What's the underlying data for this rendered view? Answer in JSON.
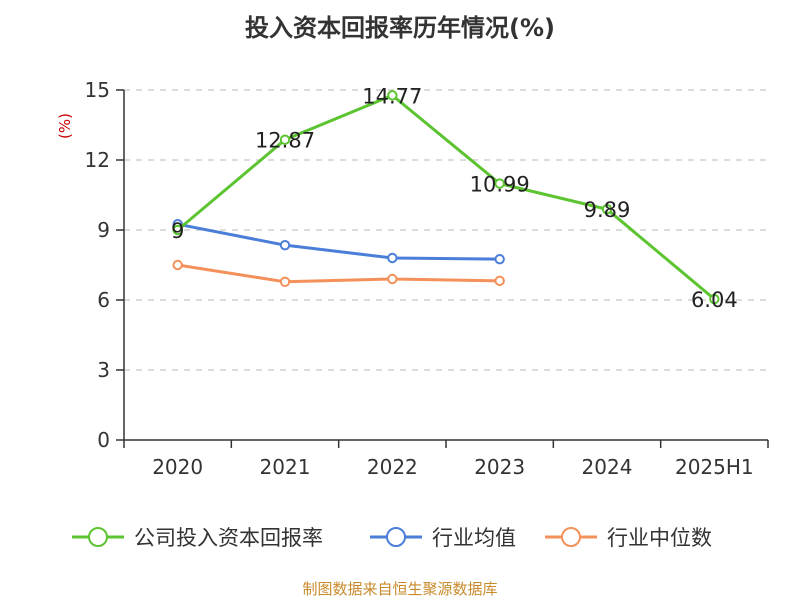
{
  "title": "投入资本回报率历年情况(%)",
  "footer": "制图数据来自恒生聚源数据库",
  "chart_data": {
    "type": "line",
    "title": "投入资本回报率历年情况(%)",
    "ylabel": "(%)",
    "xlabel": "",
    "categories": [
      "2020",
      "2021",
      "2022",
      "2023",
      "2024",
      "2025H1"
    ],
    "ylim": [
      0,
      15
    ],
    "yticks": [
      0,
      3,
      6,
      9,
      12,
      15
    ],
    "grid": true,
    "legend_position": "bottom",
    "series": [
      {
        "name": "公司投入资本回报率",
        "color": "#5cc430",
        "values": [
          9,
          12.87,
          14.77,
          10.99,
          9.89,
          6.04
        ],
        "labels": [
          "9",
          "12.87",
          "14.77",
          "10.99",
          "9.89",
          "6.04"
        ]
      },
      {
        "name": "行业均值",
        "color": "#4a7ed8",
        "values": [
          9.25,
          8.35,
          7.8,
          7.75,
          null,
          null
        ]
      },
      {
        "name": "行业中位数",
        "color": "#f4905a",
        "values": [
          7.5,
          6.78,
          6.9,
          6.82,
          null,
          null
        ]
      }
    ]
  }
}
